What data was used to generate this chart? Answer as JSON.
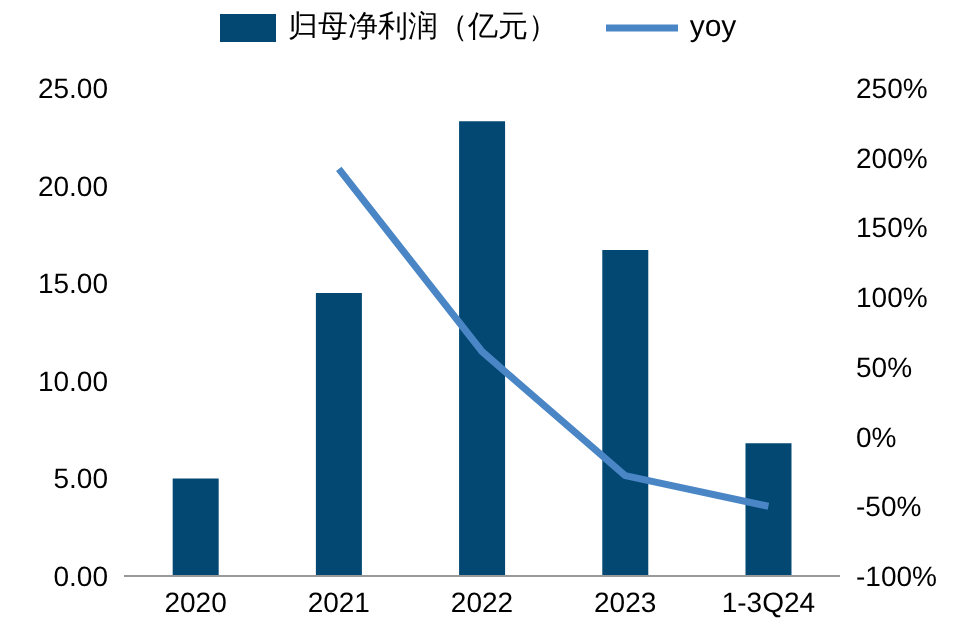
{
  "chart_data": {
    "type": "bar",
    "categories": [
      "2020",
      "2021",
      "2022",
      "2023",
      "1-3Q24"
    ],
    "series": [
      {
        "name": "归母净利润（亿元）",
        "color": "#024873",
        "values": [
          5.0,
          14.5,
          23.3,
          16.7,
          6.8
        ]
      },
      {
        "name": "yoy",
        "type": "line",
        "axis": "y2",
        "color": "#4a86c5",
        "values": [
          null,
          192,
          61,
          -28,
          -50
        ]
      }
    ],
    "ylim": [
      0,
      25
    ],
    "yticks": [
      {
        "value": 0,
        "label": "0.00"
      },
      {
        "value": 5,
        "label": "5.00"
      },
      {
        "value": 10,
        "label": "10.00"
      },
      {
        "value": 15,
        "label": "15.00"
      },
      {
        "value": 20,
        "label": "20.00"
      },
      {
        "value": 25,
        "label": "25.00"
      }
    ],
    "y2lim": [
      -100,
      250
    ],
    "y2ticks": [
      {
        "value": -100,
        "label": "-100%"
      },
      {
        "value": -50,
        "label": "-50%"
      },
      {
        "value": 0,
        "label": "0%"
      },
      {
        "value": 50,
        "label": "50%"
      },
      {
        "value": 100,
        "label": "100%"
      },
      {
        "value": 150,
        "label": "150%"
      },
      {
        "value": 200,
        "label": "200%"
      },
      {
        "value": 250,
        "label": "250%"
      }
    ],
    "legend": "top",
    "grid": false,
    "marker": "none",
    "line_style": "solid"
  }
}
